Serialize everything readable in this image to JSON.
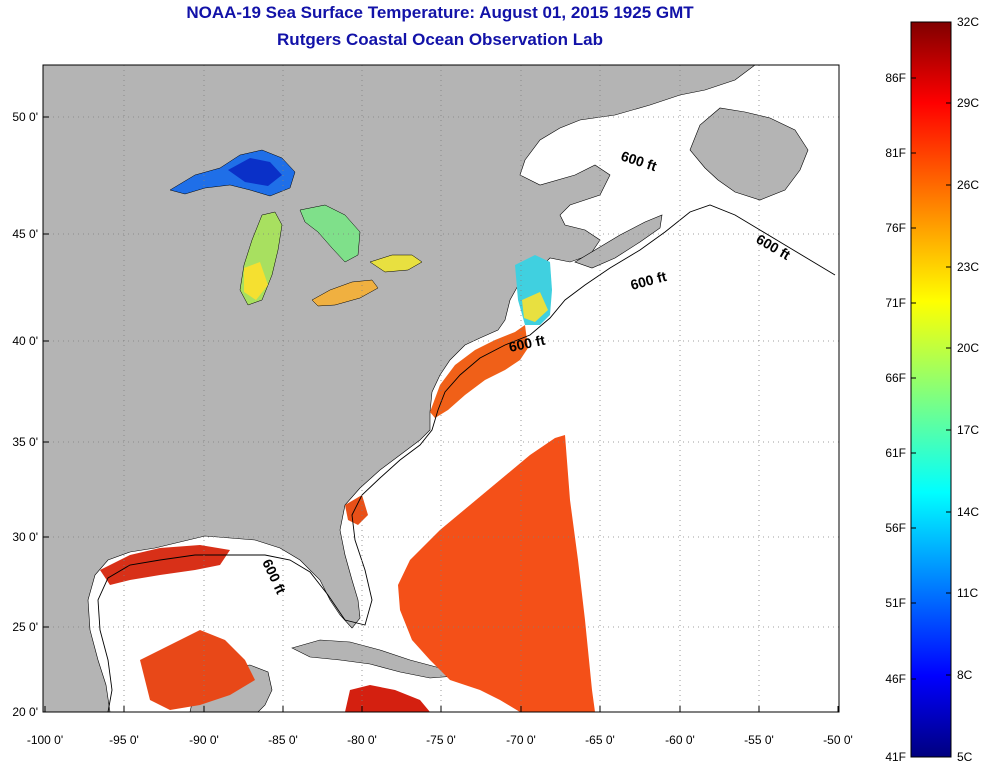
{
  "header": {
    "title": "NOAA-19 Sea Surface Temperature:  August 01, 2015 1925 GMT",
    "subtitle": "Rutgers Coastal Ocean Observation Lab"
  },
  "map": {
    "lon_ticks": [
      "-100 0'",
      "-95 0'",
      "-90 0'",
      "-85 0'",
      "-80 0'",
      "-75 0'",
      "-70 0'",
      "-65 0'",
      "-60 0'",
      "-55 0'",
      "-50 0'"
    ],
    "lat_ticks": [
      "20 0'",
      "25 0'",
      "30 0'",
      "35 0'",
      "40 0'",
      "45 0'",
      "50 0'"
    ],
    "isobath_labels": [
      "600 ft",
      "600 ft",
      "600 ft",
      "600 ft",
      "600 ft"
    ],
    "colors": {
      "land": "#b4b4b4",
      "ocean_no_data": "#ffffff",
      "grid": "#808080"
    }
  },
  "colorbar": {
    "celsius_labels": [
      "32C",
      "29C",
      "26C",
      "23C",
      "20C",
      "17C",
      "14C",
      "11C",
      "8C",
      "5C"
    ],
    "fahrenheit_labels": [
      "86F",
      "81F",
      "76F",
      "71F",
      "66F",
      "61F",
      "56F",
      "51F",
      "46F",
      "41F"
    ],
    "colormap": "jet"
  }
}
